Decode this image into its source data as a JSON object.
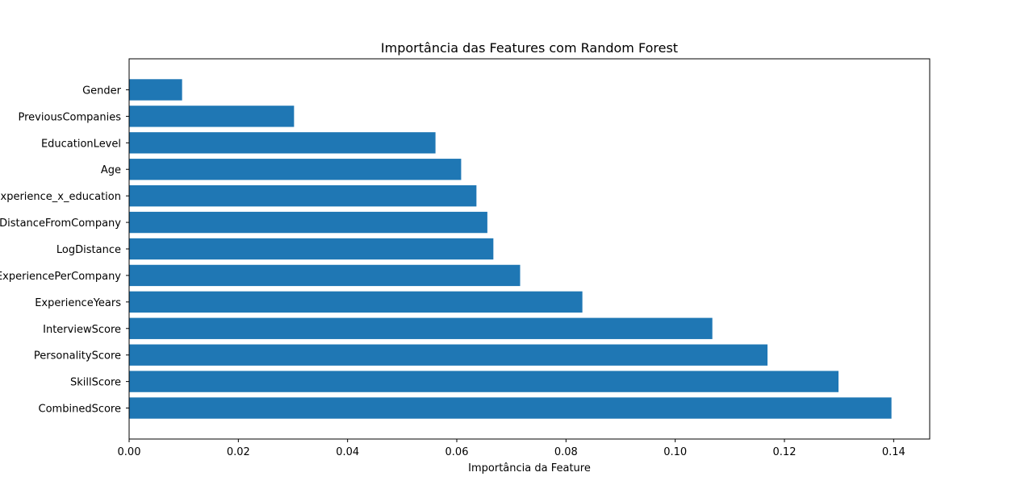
{
  "chart_data": {
    "type": "bar",
    "orientation": "horizontal",
    "title": "Importância das Features com Random Forest",
    "xlabel": "Importância da Feature",
    "ylabel": "",
    "categories": [
      "CombinedScore",
      "SkillScore",
      "PersonalityScore",
      "InterviewScore",
      "ExperienceYears",
      "ExperiencePerCompany",
      "LogDistance",
      "DistanceFromCompany",
      "experience_x_education",
      "Age",
      "EducationLevel",
      "PreviousCompanies",
      "Gender"
    ],
    "values": [
      0.1396,
      0.1299,
      0.1169,
      0.1068,
      0.083,
      0.0716,
      0.0667,
      0.0656,
      0.0636,
      0.0608,
      0.0561,
      0.0302,
      0.0097
    ],
    "xlim": [
      0,
      0.1466
    ],
    "xticks": [
      0.0,
      0.02,
      0.04,
      0.06,
      0.08,
      0.1,
      0.12,
      0.14
    ],
    "xtick_labels": [
      "0.00",
      "0.02",
      "0.04",
      "0.06",
      "0.08",
      "0.10",
      "0.12",
      "0.14"
    ],
    "bar_color": "#1f77b4",
    "grid": false,
    "legend": "none"
  }
}
